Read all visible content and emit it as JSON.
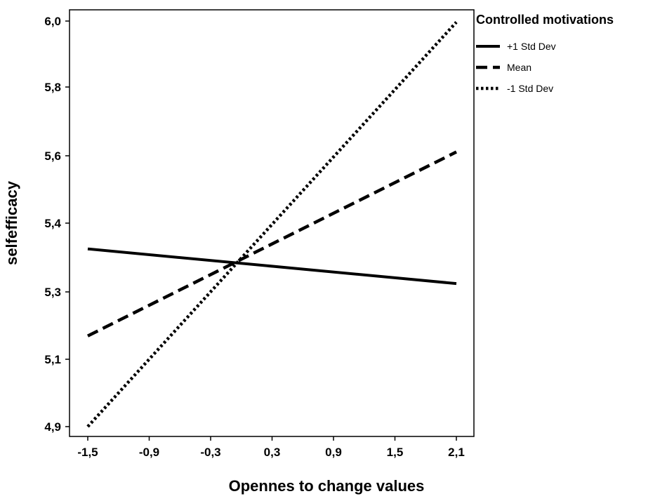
{
  "chart_data": {
    "type": "line",
    "title": "",
    "xlabel": "Opennes to change values",
    "ylabel": "selfefficacy",
    "x": [
      -1.5,
      2.1
    ],
    "xlim": [
      -1.5,
      2.1
    ],
    "ylim": [
      4.9,
      6.0
    ],
    "x_ticks": [
      -1.5,
      -0.9,
      -0.3,
      0.3,
      0.9,
      1.5,
      2.1
    ],
    "x_tick_labels": [
      "-1,5",
      "-0,9",
      "-0,3",
      "0,3",
      "0,9",
      "1,5",
      "2,1"
    ],
    "y_ticks": [
      4.9,
      5.1,
      5.3,
      5.4,
      5.6,
      5.8,
      6.0
    ],
    "y_tick_labels": [
      "4,9",
      "5,1",
      "5,3",
      "5,4",
      "5,6",
      "5,8",
      "6,0"
    ],
    "grid": false,
    "legend": {
      "title": "Controlled motivations",
      "placement": "top-right"
    },
    "series": [
      {
        "name": "+1 Std Dev",
        "style": "solid",
        "values": [
          5.382,
          5.288
        ]
      },
      {
        "name": "Mean",
        "style": "dashed",
        "values": [
          5.146,
          5.645
        ]
      },
      {
        "name": "-1 Std Dev",
        "style": "dotted",
        "values": [
          4.9,
          5.997
        ]
      }
    ]
  },
  "colors": {
    "line": "#000000",
    "background": "#ffffff"
  }
}
